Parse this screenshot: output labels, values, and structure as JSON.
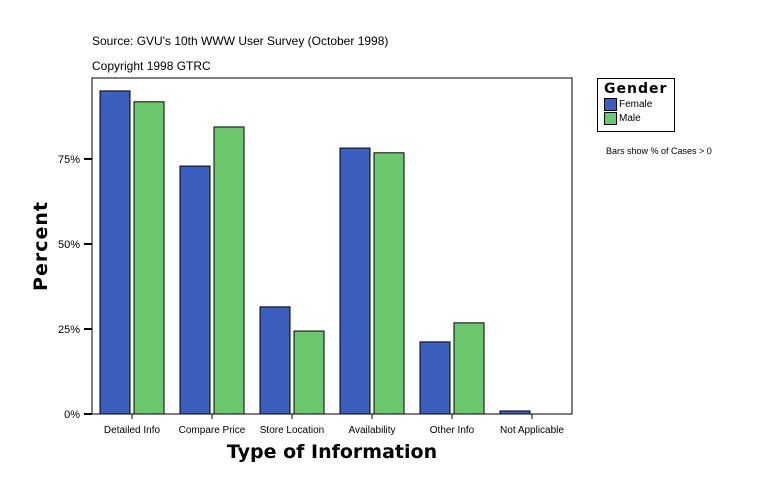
{
  "header": {
    "source": "Source: GVU's 10th WWW User Survey (October 1998)",
    "copyright": "Copyright 1998 GTRC"
  },
  "note": "Bars show % of Cases > 0",
  "chart_data": {
    "type": "bar",
    "xlabel": "Type of Information",
    "ylabel": "Percent",
    "categories": [
      "Detailed Info",
      "Compare Price",
      "Store Location",
      "Availability",
      "Other Info",
      "Not Applicable"
    ],
    "series": [
      {
        "name": "Female",
        "color": "#3a5fbf",
        "values": [
          95.0,
          72.9,
          31.5,
          78.2,
          21.2,
          0.9
        ]
      },
      {
        "name": "Male",
        "color": "#6cc86c",
        "values": [
          91.8,
          84.4,
          24.4,
          76.8,
          26.8,
          0
        ]
      }
    ],
    "yticks": [
      0,
      25,
      50,
      75
    ],
    "ytick_labels": [
      "0%",
      "25%",
      "50%",
      "75%"
    ],
    "ylim": [
      0,
      98.8
    ],
    "grid": false,
    "legend": {
      "title": "Gender",
      "placement": "right"
    }
  }
}
